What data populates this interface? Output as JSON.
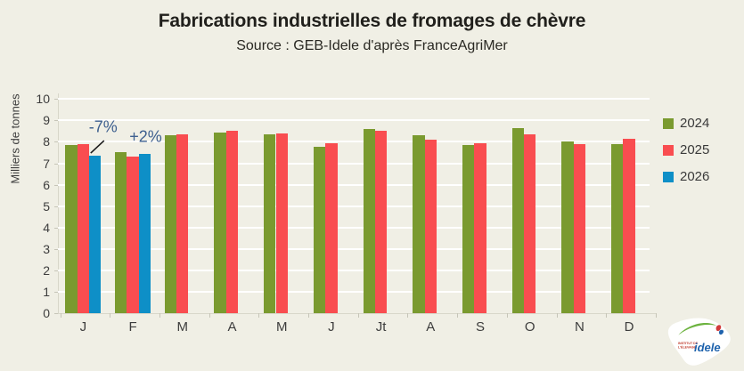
{
  "chart_data": {
    "type": "bar",
    "title": "Fabrications industrielles de fromages de chèvre",
    "subtitle": "Source : GEB-Idele d'après FranceAgriMer",
    "ylabel": "Milliers de tonnes",
    "xlabel": "",
    "ylim": [
      0,
      10
    ],
    "yticks": [
      0,
      1,
      2,
      3,
      4,
      5,
      6,
      7,
      8,
      9,
      10
    ],
    "grid": true,
    "legend_position": "right",
    "categories": [
      "J",
      "F",
      "M",
      "A",
      "M",
      "J",
      "Jt",
      "A",
      "S",
      "O",
      "N",
      "D"
    ],
    "series": [
      {
        "name": "2024",
        "color": "#7a9a2f",
        "values": [
          7.85,
          7.5,
          8.3,
          8.45,
          8.35,
          7.75,
          8.6,
          8.3,
          7.85,
          8.65,
          8.0,
          7.9
        ]
      },
      {
        "name": "2025",
        "color": "#f94d50",
        "values": [
          7.9,
          7.3,
          8.35,
          8.5,
          8.4,
          7.95,
          8.5,
          8.1,
          7.95,
          8.35,
          7.9,
          8.15
        ]
      },
      {
        "name": "2026",
        "color": "#0e8fc7",
        "values": [
          7.35,
          7.45,
          null,
          null,
          null,
          null,
          null,
          null,
          null,
          null,
          null,
          null
        ]
      }
    ],
    "annotations": [
      {
        "text": "-7%",
        "series": "2026",
        "month_index": 0
      },
      {
        "text": "+2%",
        "series": "2026",
        "month_index": 1
      }
    ]
  },
  "logo": {
    "line1": "INSTITUT DE",
    "line2": "L'ÉLEVAGE",
    "name": "idele"
  }
}
